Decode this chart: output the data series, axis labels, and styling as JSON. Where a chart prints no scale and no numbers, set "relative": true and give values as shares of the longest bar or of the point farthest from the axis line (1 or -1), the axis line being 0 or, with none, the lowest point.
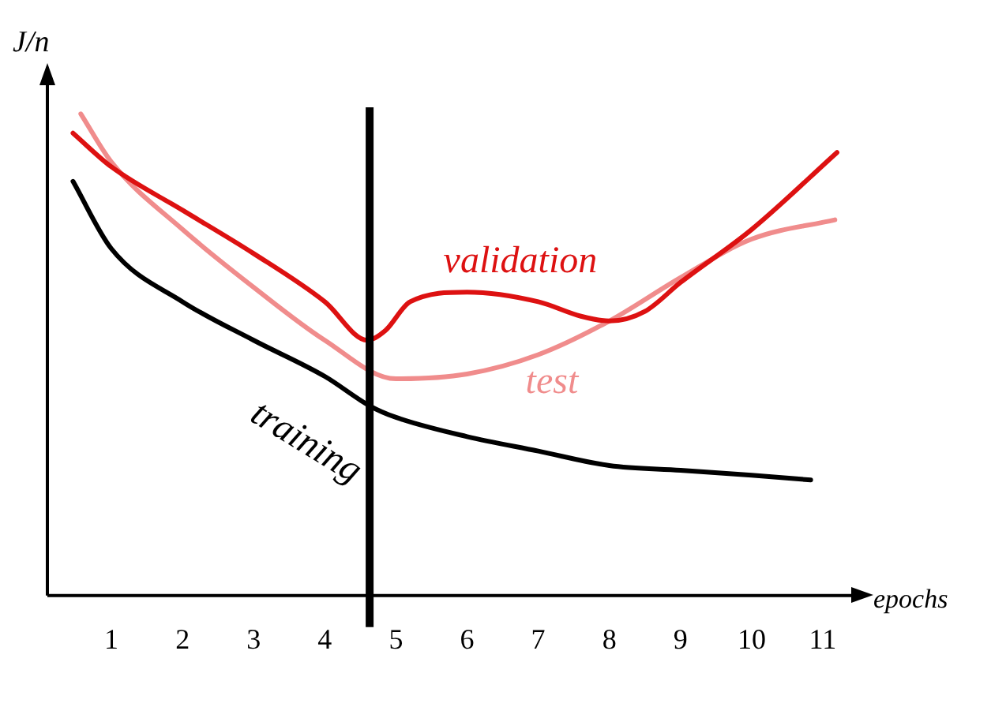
{
  "chart_data": {
    "type": "line",
    "relative": true,
    "xlabel": "epochs",
    "ylabel": "J/n",
    "xlim": [
      0.1,
      11.4
    ],
    "xticks": [
      1,
      2,
      3,
      4,
      5,
      6,
      7,
      8,
      9,
      10,
      11
    ],
    "tick_labels": "x",
    "grid": false,
    "legend": false,
    "marker": "none",
    "line_style": "solid",
    "series": [
      {
        "name": "training",
        "color": "#000000",
        "x": [
          0.46,
          1,
          2,
          3,
          4,
          4.63,
          5,
          6,
          7,
          8,
          9,
          10,
          10.83
        ],
        "values": [
          0.86,
          0.72,
          0.61,
          0.53,
          0.455,
          0.394,
          0.37,
          0.33,
          0.3,
          0.27,
          0.26,
          0.25,
          0.24
        ]
      },
      {
        "name": "validation",
        "color": "#dd1111",
        "x": [
          0.46,
          1,
          2,
          3,
          4,
          4.6,
          4.85,
          5.2,
          6,
          7,
          7.6,
          8,
          8.5,
          9,
          10,
          11.2
        ],
        "values": [
          0.96,
          0.89,
          0.8,
          0.71,
          0.61,
          0.53,
          0.55,
          0.61,
          0.63,
          0.61,
          0.58,
          0.57,
          0.59,
          0.65,
          0.76,
          0.92
        ]
      },
      {
        "name": "test",
        "color": "#f08c8c",
        "x": [
          0.57,
          1,
          2,
          3,
          4,
          5,
          6,
          7,
          8,
          9,
          10,
          11.17
        ],
        "values": [
          1.0,
          0.9,
          0.76,
          0.64,
          0.53,
          0.45,
          0.46,
          0.5,
          0.57,
          0.66,
          0.74,
          0.78
        ]
      }
    ],
    "ref_lines": [
      {
        "axis": "x",
        "value": 4.63,
        "color": "#000000"
      }
    ]
  }
}
